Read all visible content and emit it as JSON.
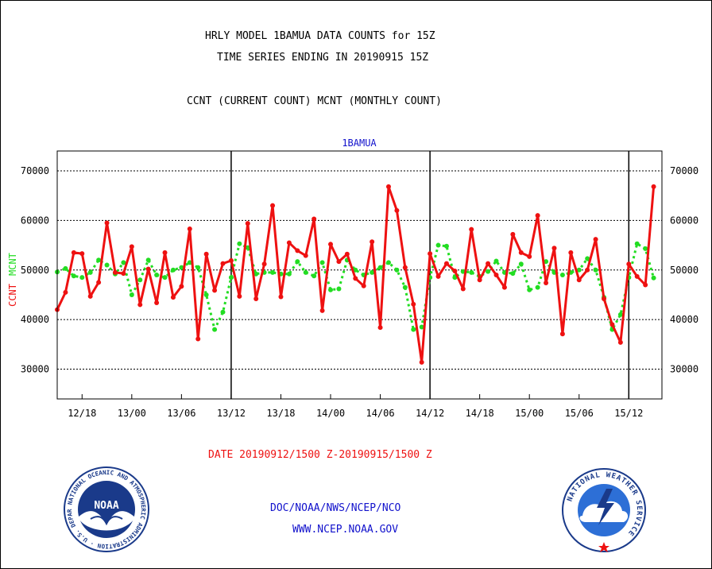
{
  "header": {
    "title_line1": "HRLY MODEL 1BAMUA DATA COUNTS for 15Z",
    "title_line2": "TIME SERIES ENDING IN 20190915 15Z",
    "subtitle": "CCNT (CURRENT COUNT) MCNT (MONTHLY COUNT)"
  },
  "footer": {
    "date_range": "DATE 20190912/1500 Z-20190915/1500 Z",
    "org": "DOC/NOAA/NWS/NCEP/NCO",
    "url": "WWW.NCEP.NOAA.GOV",
    "noaa_logo_text": "NOAA",
    "noaa_seal_text": "NATIONAL OCEANIC AND ATMOSPHERIC ADMINISTRATION · U.S. DEPARTMENT OF COMMERCE",
    "nws_seal_text": "NATIONAL WEATHER SERVICE"
  },
  "colors": {
    "ccnt": "#ee1111",
    "mcnt": "#22dd22",
    "plot_title": "#1111cc",
    "footer_blue": "#1111cc",
    "date_red": "#ee1111"
  },
  "chart_data": {
    "type": "line",
    "title": "1BAMUA",
    "ylabel_left": [
      "CCNT",
      "MCNT"
    ],
    "ylim": [
      24000,
      74000
    ],
    "yticks": [
      30000,
      40000,
      50000,
      60000,
      70000
    ],
    "ytick_labels": [
      "30000",
      "40000",
      "50000",
      "60000",
      "70000"
    ],
    "xlim": [
      0,
      73
    ],
    "xticks": [
      3,
      9,
      15,
      21,
      27,
      33,
      39,
      45,
      51,
      57,
      63,
      69
    ],
    "xtick_labels": [
      "12/18",
      "13/00",
      "13/06",
      "13/12",
      "13/18",
      "14/00",
      "14/06",
      "14/12",
      "14/18",
      "15/00",
      "15/06",
      "15/12"
    ],
    "day_boundaries": [
      21,
      45,
      69
    ],
    "grid_y": true,
    "series": [
      {
        "name": "CCNT",
        "values": [
          42000,
          45500,
          53500,
          53300,
          44700,
          47500,
          59500,
          49500,
          49300,
          54700,
          43000,
          50200,
          43400,
          53500,
          44500,
          46700,
          58300,
          36100,
          53200,
          45900,
          51300,
          51900,
          44700,
          59400,
          44200,
          51200,
          63000,
          44600,
          55500,
          53900,
          52900,
          60300,
          41800,
          55200,
          51700,
          53200,
          48300,
          46800,
          55700,
          38400,
          66800,
          62000,
          50500,
          43100,
          31400,
          53300,
          48700,
          51300,
          49800,
          46200,
          58200,
          48000,
          51300,
          49000,
          46500,
          57200,
          53500,
          52700,
          61000,
          47400,
          54400,
          37100,
          53500,
          48000,
          50000,
          56200,
          44200,
          39000,
          35400,
          51200,
          48700,
          47000,
          66800
        ]
      },
      {
        "name": "MCNT",
        "values": [
          49600,
          50300,
          48800,
          48500,
          49500,
          52000,
          51000,
          49200,
          51500,
          45000,
          48000,
          52000,
          49000,
          48500,
          50000,
          50500,
          51500,
          50500,
          45000,
          38000,
          41500,
          48500,
          55300,
          54500,
          49200,
          49500,
          49500,
          49200,
          49200,
          51700,
          49500,
          48800,
          51500,
          46000,
          46200,
          52000,
          50000,
          49000,
          49500,
          50500,
          51500,
          50000,
          46500,
          38000,
          38500,
          48500,
          55000,
          54800,
          48500,
          49700,
          49500,
          48700,
          49700,
          51800,
          49500,
          49300,
          51200,
          46000,
          46500,
          51700,
          49500,
          49000,
          49500,
          50000,
          52300,
          50000,
          44500,
          38000,
          41000,
          48500,
          55300,
          54300,
          48400
        ]
      }
    ]
  }
}
